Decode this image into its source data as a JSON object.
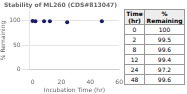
{
  "chart_data": {
    "type": "scatter",
    "title": "Stability of ML260 (CDS#813047)",
    "x_label": "Incubation Time (hr)",
    "y_label": "% Remaining",
    "x": [
      0,
      2,
      8,
      12,
      24,
      48
    ],
    "values": [
      100,
      99.5,
      99.6,
      99.4,
      97.2,
      99.6
    ],
    "color": "#1a1a6e",
    "marker": "circle",
    "xlim": [
      -2,
      60
    ],
    "xticks": [
      0,
      20,
      40,
      60
    ],
    "ylim": [
      0,
      120
    ],
    "yticks": [
      0,
      50,
      100
    ],
    "grid": "y",
    "table_headers": [
      "Time\n(hr)",
      "%\nRemaining"
    ]
  }
}
